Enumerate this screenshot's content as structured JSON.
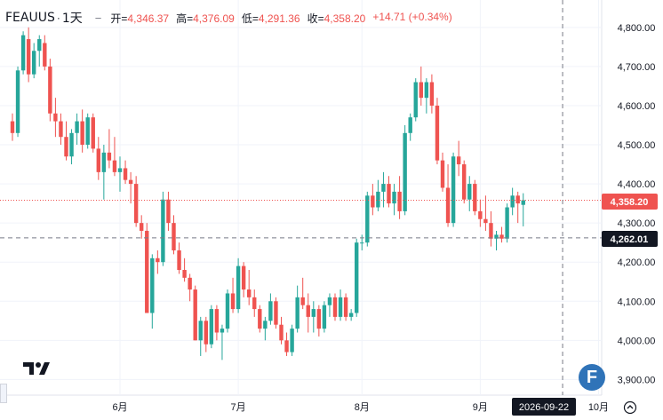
{
  "header": {
    "symbol": "FEAUUS",
    "separator": "·",
    "interval": "1天",
    "open_label": "开=",
    "open_value": "4,346.37",
    "high_label": "高=",
    "high_value": "4,376.09",
    "low_label": "低=",
    "low_value": "4,291.36",
    "close_label": "收=",
    "close_value": "4,358.20",
    "change": "+14.71 (+0.34%)",
    "collapse_symbol": "−"
  },
  "price_labels": {
    "last": "4,358.20",
    "crosshair": "4,262.01"
  },
  "date_label": "2026-09-22",
  "badge_letter": "F",
  "colors": {
    "up": "#26a69a",
    "down": "#ef5350",
    "last_line": "#ef5350",
    "crosshair": "#787b86",
    "axis_text": "#131722",
    "label_bg": "#131722"
  },
  "icons": [
    "tradingview-logo",
    "f-badge",
    "go-to-realtime-icon"
  ],
  "chart_data": {
    "type": "candlestick",
    "y_axis": {
      "min": 3860,
      "max": 4870,
      "ticks": [
        3900,
        4000,
        4100,
        4200,
        4300,
        4400,
        4500,
        4600,
        4700,
        4800
      ],
      "tick_labels": [
        "3,900.00",
        "4,000.00",
        "4,100.00",
        "4,200.00",
        "4,300.00",
        "4,400.00",
        "4,500.00",
        "4,600.00",
        "4,700.00",
        "4,800.00"
      ],
      "position": "right"
    },
    "x_axis": {
      "labels": [
        "6月",
        "7月",
        "8月",
        "9月",
        "10月"
      ],
      "label_bar_index": [
        20,
        42,
        65,
        87,
        109
      ]
    },
    "last_price": 4358.2,
    "crosshair_price": 4262.01,
    "crosshair_bar_index": 101,
    "candles": [
      [
        4560,
        4580,
        4510,
        4530
      ],
      [
        4530,
        4700,
        4520,
        4690
      ],
      [
        4690,
        4790,
        4680,
        4780
      ],
      [
        4770,
        4800,
        4660,
        4680
      ],
      [
        4680,
        4760,
        4670,
        4740
      ],
      [
        4740,
        4780,
        4700,
        4770
      ],
      [
        4760,
        4780,
        4690,
        4700
      ],
      [
        4700,
        4720,
        4560,
        4580
      ],
      [
        4580,
        4620,
        4520,
        4560
      ],
      [
        4560,
        4580,
        4500,
        4520
      ],
      [
        4520,
        4560,
        4460,
        4470
      ],
      [
        4470,
        4540,
        4450,
        4530
      ],
      [
        4530,
        4580,
        4500,
        4560
      ],
      [
        4560,
        4590,
        4480,
        4500
      ],
      [
        4500,
        4580,
        4490,
        4570
      ],
      [
        4570,
        4580,
        4480,
        4490
      ],
      [
        4490,
        4520,
        4410,
        4430
      ],
      [
        4430,
        4500,
        4360,
        4480
      ],
      [
        4480,
        4540,
        4440,
        4460
      ],
      [
        4460,
        4520,
        4420,
        4430
      ],
      [
        4430,
        4470,
        4380,
        4440
      ],
      [
        4440,
        4460,
        4400,
        4410
      ],
      [
        4410,
        4430,
        4350,
        4400
      ],
      [
        4400,
        4420,
        4290,
        4300
      ],
      [
        4300,
        4320,
        4260,
        4280
      ],
      [
        4280,
        4300,
        4070,
        4070
      ],
      [
        4070,
        4220,
        4030,
        4210
      ],
      [
        4210,
        4230,
        4170,
        4200
      ],
      [
        4200,
        4380,
        4190,
        4360
      ],
      [
        4360,
        4380,
        4280,
        4300
      ],
      [
        4300,
        4320,
        4220,
        4230
      ],
      [
        4230,
        4250,
        4170,
        4180
      ],
      [
        4180,
        4210,
        4150,
        4160
      ],
      [
        4160,
        4170,
        4100,
        4130
      ],
      [
        4130,
        4140,
        4000,
        4000
      ],
      [
        4000,
        4060,
        3960,
        4050
      ],
      [
        4050,
        4060,
        3970,
        3990
      ],
      [
        3990,
        4090,
        3980,
        4080
      ],
      [
        4080,
        4090,
        4000,
        4020
      ],
      [
        4020,
        4040,
        3950,
        4030
      ],
      [
        4030,
        4130,
        4020,
        4120
      ],
      [
        4120,
        4160,
        4070,
        4080
      ],
      [
        4080,
        4210,
        4070,
        4190
      ],
      [
        4190,
        4200,
        4110,
        4130
      ],
      [
        4130,
        4180,
        4090,
        4110
      ],
      [
        4110,
        4130,
        4060,
        4080
      ],
      [
        4080,
        4090,
        4020,
        4030
      ],
      [
        4030,
        4060,
        4000,
        4050
      ],
      [
        4050,
        4120,
        4040,
        4100
      ],
      [
        4100,
        4110,
        4030,
        4040
      ],
      [
        4040,
        4060,
        3990,
        4000
      ],
      [
        4000,
        4020,
        3960,
        3970
      ],
      [
        3970,
        4040,
        3960,
        4030
      ],
      [
        4030,
        4140,
        4020,
        4110
      ],
      [
        4110,
        4160,
        4080,
        4090
      ],
      [
        4090,
        4120,
        4020,
        4060
      ],
      [
        4060,
        4100,
        4020,
        4080
      ],
      [
        4080,
        4090,
        4010,
        4030
      ],
      [
        4030,
        4100,
        4020,
        4090
      ],
      [
        4090,
        4120,
        4060,
        4110
      ],
      [
        4110,
        4120,
        4050,
        4060
      ],
      [
        4060,
        4130,
        4050,
        4110
      ],
      [
        4110,
        4120,
        4050,
        4060
      ],
      [
        4060,
        4080,
        4050,
        4070
      ],
      [
        4070,
        4260,
        4060,
        4250
      ],
      [
        4250,
        4270,
        4230,
        4250
      ],
      [
        4250,
        4380,
        4240,
        4370
      ],
      [
        4370,
        4400,
        4320,
        4340
      ],
      [
        4340,
        4410,
        4330,
        4380
      ],
      [
        4380,
        4430,
        4340,
        4400
      ],
      [
        4400,
        4420,
        4340,
        4350
      ],
      [
        4350,
        4400,
        4320,
        4380
      ],
      [
        4380,
        4420,
        4310,
        4330
      ],
      [
        4330,
        4550,
        4320,
        4530
      ],
      [
        4530,
        4580,
        4510,
        4570
      ],
      [
        4570,
        4670,
        4560,
        4660
      ],
      [
        4660,
        4700,
        4600,
        4620
      ],
      [
        4620,
        4670,
        4580,
        4660
      ],
      [
        4660,
        4680,
        4580,
        4600
      ],
      [
        4600,
        4620,
        4450,
        4460
      ],
      [
        4460,
        4480,
        4380,
        4390
      ],
      [
        4390,
        4450,
        4290,
        4300
      ],
      [
        4300,
        4480,
        4290,
        4470
      ],
      [
        4470,
        4510,
        4420,
        4450
      ],
      [
        4450,
        4460,
        4350,
        4360
      ],
      [
        4360,
        4420,
        4330,
        4400
      ],
      [
        4400,
        4410,
        4320,
        4330
      ],
      [
        4330,
        4360,
        4290,
        4310
      ],
      [
        4310,
        4370,
        4280,
        4300
      ],
      [
        4300,
        4330,
        4240,
        4260
      ],
      [
        4260,
        4280,
        4230,
        4270
      ],
      [
        4270,
        4290,
        4250,
        4260
      ],
      [
        4260,
        4350,
        4250,
        4340
      ],
      [
        4340,
        4390,
        4320,
        4370
      ],
      [
        4370,
        4380,
        4300,
        4350
      ],
      [
        4346.37,
        4376.09,
        4291.36,
        4358.2
      ]
    ]
  }
}
